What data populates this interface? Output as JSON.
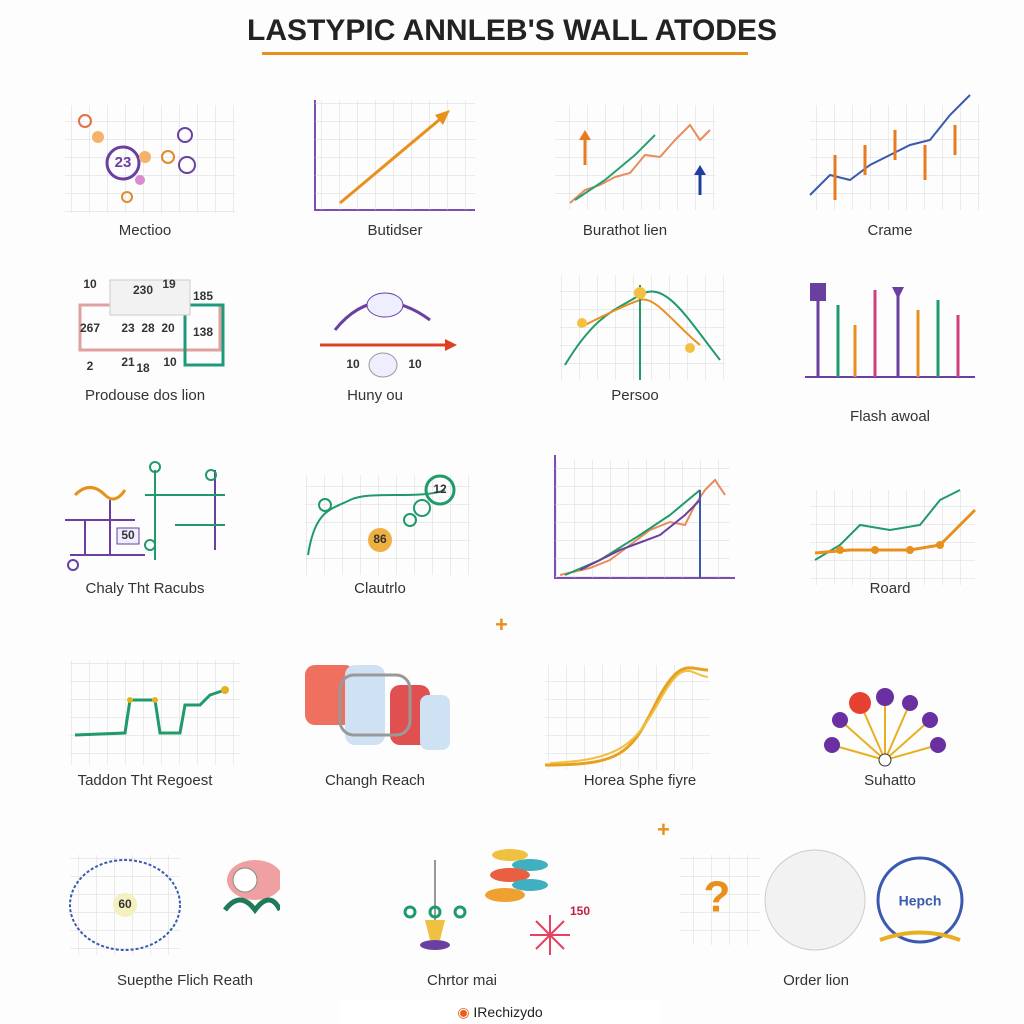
{
  "title": "LASTYPIC ANNLEB'S WALL ATODES",
  "tiles": [
    {
      "caption": "Mectioo",
      "labels": [
        "23"
      ]
    },
    {
      "caption": "Butidser"
    },
    {
      "caption": "Burathot lien"
    },
    {
      "caption": "Crame"
    },
    {
      "caption": "Prodouse dos lion",
      "labels": [
        "10",
        "230",
        "19",
        "185",
        "267",
        "23",
        "28",
        "20",
        "138",
        "2",
        "21",
        "18",
        "10"
      ]
    },
    {
      "caption": "Huny ou",
      "labels": [
        "10",
        "10"
      ]
    },
    {
      "caption": "Persoo"
    },
    {
      "caption": "Flash awoal"
    },
    {
      "caption": "Chaly Tht Racubs",
      "labels": [
        "50"
      ]
    },
    {
      "caption": "Clautrlo",
      "labels": [
        "12",
        "86"
      ]
    },
    {
      "caption": null
    },
    {
      "caption": "Roard"
    },
    {
      "caption": "Taddon Tht Regoest"
    },
    {
      "caption": "Changh Reach"
    },
    {
      "caption": "Horea Sphe fiyre"
    },
    {
      "caption": "Suhatto"
    },
    {
      "caption": "Suepthe Flich Reath",
      "labels": [
        "60"
      ]
    },
    {
      "caption": "Chrtor mai",
      "labels": [
        "150"
      ]
    },
    {
      "caption": "Order lion",
      "labels": [
        "Hepch"
      ]
    }
  ],
  "footer": "IRechizydo"
}
